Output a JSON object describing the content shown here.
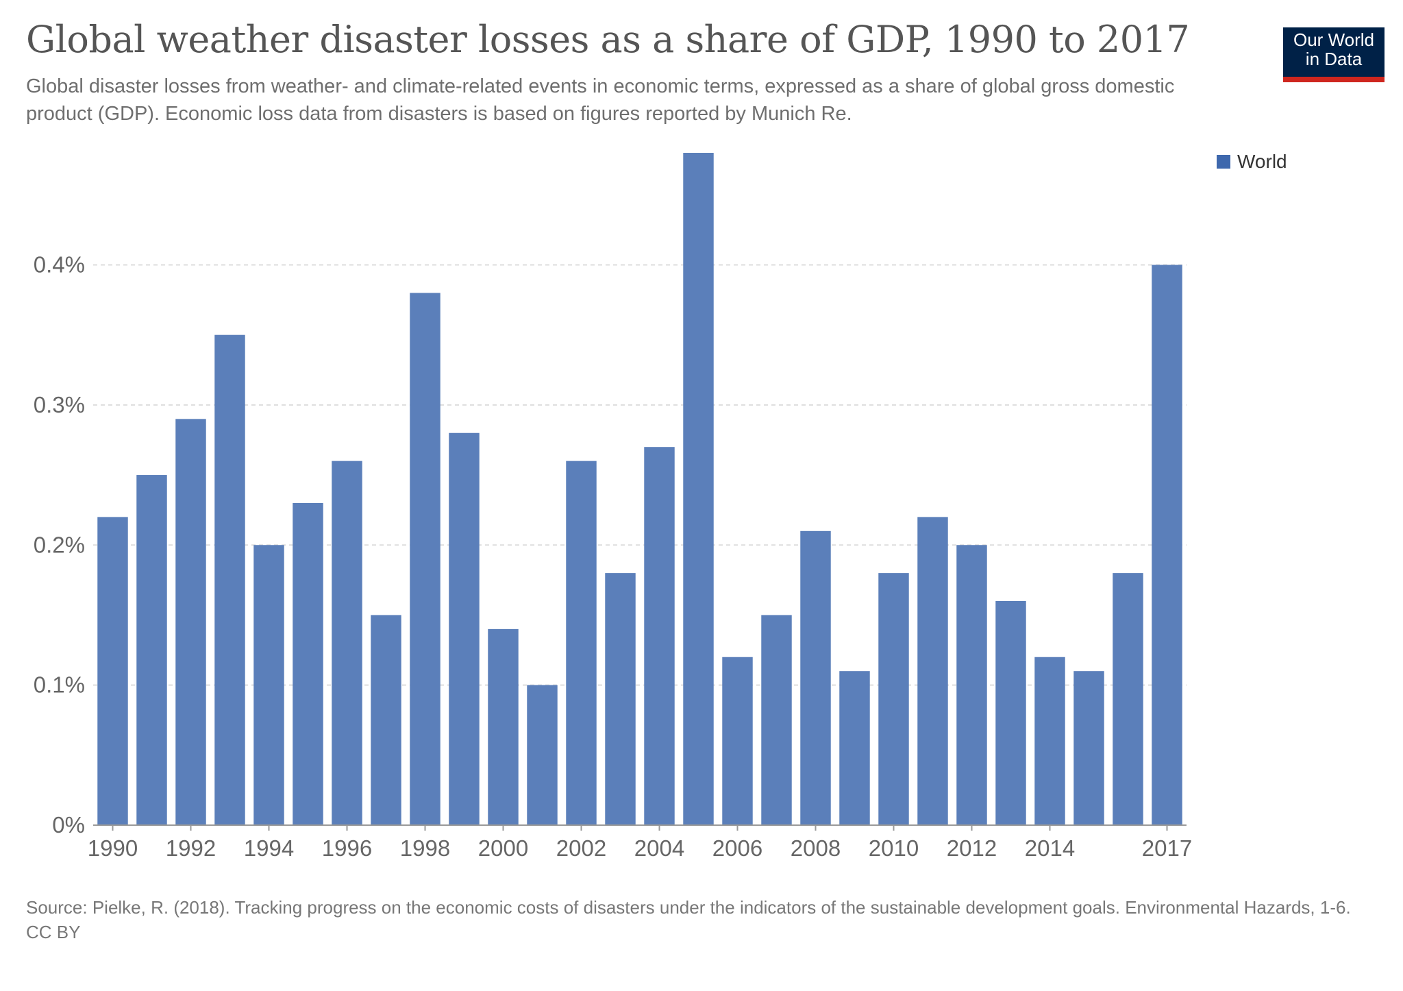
{
  "header": {
    "title": "Global weather disaster losses as a share of GDP, 1990 to 2017",
    "subtitle": "Global disaster losses from weather- and climate-related events in economic terms, expressed as a share of global gross domestic product (GDP). Economic loss data from disasters is based on figures reported by Munich Re."
  },
  "logo": {
    "line1": "Our World",
    "line2": "in Data"
  },
  "footer": {
    "source": "Source: Pielke, R. (2018). Tracking progress on the economic costs of disasters under the indicators of the sustainable development goals. Environmental Hazards, 1-6.",
    "license": "CC BY"
  },
  "colors": {
    "bar": "#5b7fba",
    "legend": "#3e68ad",
    "grid": "#dddddd",
    "logo_bg": "#002147",
    "logo_accent": "#ce261e"
  },
  "chart_data": {
    "type": "bar",
    "title": "Global weather disaster losses as a share of GDP, 1990 to 2017",
    "xlabel": "",
    "ylabel": "",
    "categories": [
      "1990",
      "1991",
      "1992",
      "1993",
      "1994",
      "1995",
      "1996",
      "1997",
      "1998",
      "1999",
      "2000",
      "2001",
      "2002",
      "2003",
      "2004",
      "2005",
      "2006",
      "2007",
      "2008",
      "2009",
      "2010",
      "2011",
      "2012",
      "2013",
      "2014",
      "2015",
      "2016",
      "2017"
    ],
    "series": [
      {
        "name": "World",
        "values": [
          0.22,
          0.25,
          0.29,
          0.35,
          0.2,
          0.23,
          0.26,
          0.15,
          0.38,
          0.28,
          0.14,
          0.1,
          0.26,
          0.18,
          0.27,
          0.48,
          0.12,
          0.15,
          0.21,
          0.11,
          0.18,
          0.22,
          0.2,
          0.16,
          0.12,
          0.11,
          0.18,
          0.4
        ]
      }
    ],
    "x_tick_labels": [
      "1990",
      "1992",
      "1994",
      "1996",
      "1998",
      "2000",
      "2002",
      "2004",
      "2006",
      "2008",
      "2010",
      "2012",
      "2014",
      "2017"
    ],
    "y_ticks": [
      0,
      0.1,
      0.2,
      0.3,
      0.4
    ],
    "y_tick_labels": [
      "0%",
      "0.1%",
      "0.2%",
      "0.3%",
      "0.4%"
    ],
    "ylim": [
      0,
      0.48
    ],
    "y_unit": "%",
    "grid": "horizontal-dashed",
    "legend_position": "top-right"
  }
}
